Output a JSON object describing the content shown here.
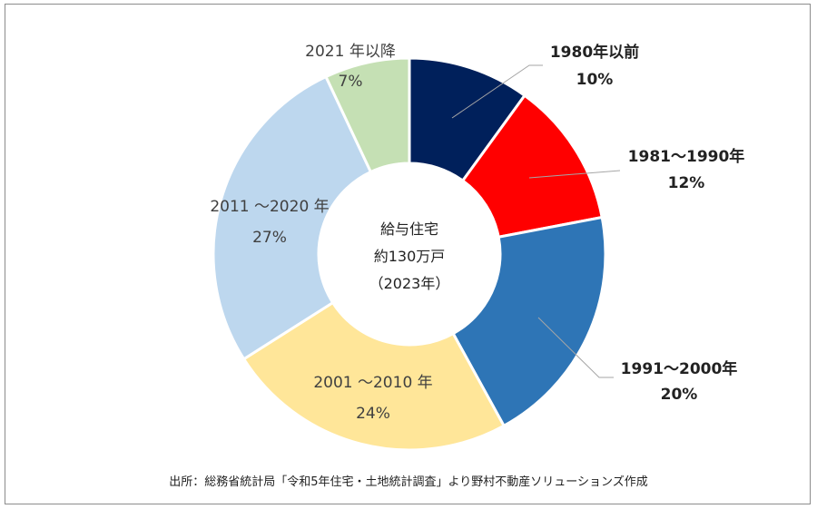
{
  "chart_data": {
    "type": "pie",
    "donut": true,
    "categories": [
      "1980年以前",
      "1981～1990年",
      "1991～2000年",
      "2001 ～2010 年",
      "2011 ～2020 年",
      "2021 年以降"
    ],
    "values": [
      10,
      12,
      20,
      24,
      27,
      7
    ],
    "value_labels": [
      "10%",
      "12%",
      "20%",
      "24%",
      "27%",
      "7%"
    ],
    "colors": [
      "#00205b",
      "#ff0000",
      "#2e75b6",
      "#ffe699",
      "#bdd7ee",
      "#c5e0b4"
    ],
    "label_weight": [
      "bold",
      "bold",
      "bold",
      "normal",
      "normal",
      "normal"
    ],
    "center_lines": [
      "給与住宅",
      "約130万戸",
      "（2023年）"
    ]
  },
  "source": "出所：総務省統計局「令和5年住宅・土地統計調査」より野村不動産ソリューションズ作成"
}
